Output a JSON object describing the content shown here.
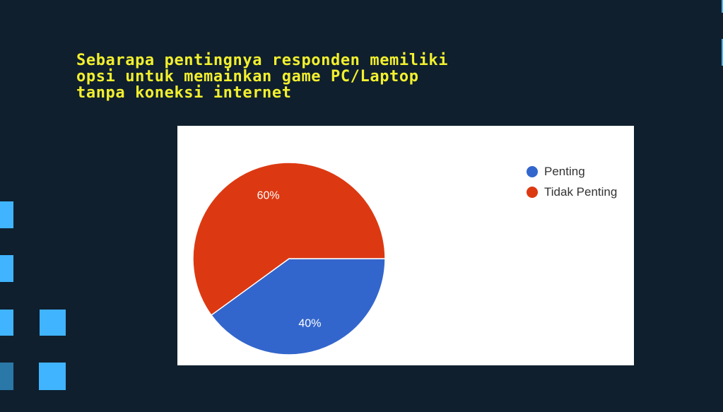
{
  "slide": {
    "title": "Sebarapa pentingnya responden memiliki\nopsi untuk memainkan game PC/Laptop\ntanpa koneksi internet"
  },
  "chart_data": {
    "type": "pie",
    "categories": [
      "Penting",
      "Tidak Penting"
    ],
    "values": [
      40,
      60
    ],
    "labels": [
      "40%",
      "60%"
    ],
    "colors": [
      "#3366cc",
      "#dc3912"
    ],
    "legend": "right"
  }
}
